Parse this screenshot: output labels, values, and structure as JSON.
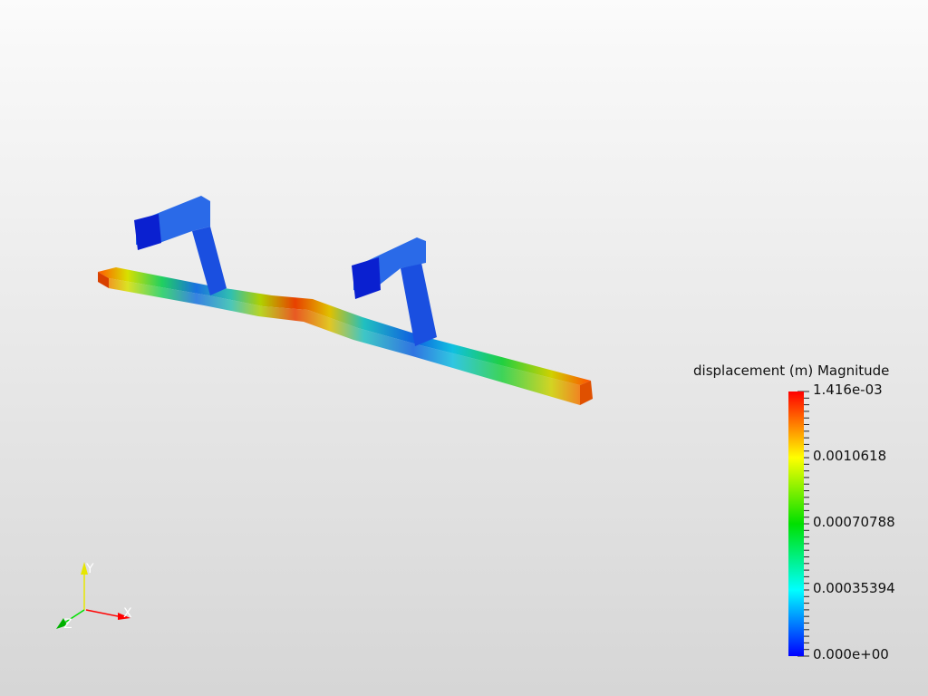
{
  "scalar_bar": {
    "title": "displacement (m) Magnitude",
    "labels": [
      "1.416e-03",
      "0.0010618",
      "0.00070788",
      "0.00035394",
      "0.000e+00"
    ],
    "range": [
      0,
      0.001416
    ],
    "colormap": [
      "#0000ff",
      "#00ffff",
      "#00ff00",
      "#ffff00",
      "#ff0000"
    ]
  },
  "axes": {
    "x": "X",
    "y": "Y",
    "z": "Z",
    "x_color": "#ff0000",
    "y_color": "#ffff00",
    "z_color": "#00cc00"
  }
}
